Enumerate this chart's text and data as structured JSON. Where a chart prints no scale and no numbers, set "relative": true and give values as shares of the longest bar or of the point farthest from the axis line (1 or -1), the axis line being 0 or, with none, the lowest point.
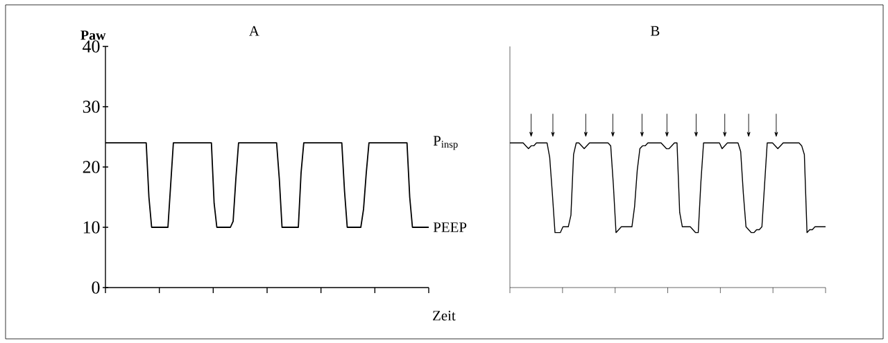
{
  "chart_data": [
    {
      "type": "line",
      "title": "A",
      "ylabel": "Paw",
      "xlabel": "Zeit",
      "color": "#000000",
      "categories": [
        null,
        null,
        null,
        null,
        null,
        null,
        null,
        null,
        null,
        null,
        null,
        null,
        null,
        null,
        null,
        null,
        null,
        null,
        null,
        null,
        null,
        null,
        null,
        null,
        null,
        null,
        null,
        null,
        null,
        null,
        null,
        null,
        null,
        null,
        null,
        null,
        null,
        null,
        null,
        null,
        null,
        null,
        null,
        null,
        null,
        null,
        null,
        null,
        null,
        null,
        null,
        null,
        null,
        null,
        null,
        null,
        null,
        null,
        null,
        null,
        null,
        null,
        null,
        null,
        null,
        null,
        null,
        null,
        null,
        null,
        null,
        null,
        null,
        null,
        null,
        null,
        null,
        null,
        null,
        null,
        null,
        null,
        null,
        null,
        null,
        null,
        null,
        null,
        null,
        null,
        null,
        null,
        null,
        null,
        null,
        null,
        null,
        null,
        null,
        null,
        null,
        null,
        null,
        null,
        null,
        null,
        null,
        null,
        null,
        null,
        null,
        null,
        null,
        null,
        null,
        null,
        null,
        null,
        null,
        null
      ],
      "values": [
        24,
        24,
        24,
        24,
        24,
        24,
        24,
        24,
        24,
        24,
        24,
        24,
        24,
        24,
        24,
        24,
        15,
        10,
        10,
        10,
        10,
        10,
        10,
        10,
        17,
        24,
        24,
        24,
        24,
        24,
        24,
        24,
        24,
        24,
        24,
        24,
        24,
        24,
        24,
        24,
        14,
        10,
        10,
        10,
        10,
        10,
        10,
        11,
        18,
        24,
        24,
        24,
        24,
        24,
        24,
        24,
        24,
        24,
        24,
        24,
        24,
        24,
        24,
        24,
        18,
        10,
        10,
        10,
        10,
        10,
        10,
        10,
        19,
        24,
        24,
        24,
        24,
        24,
        24,
        24,
        24,
        24,
        24,
        24,
        24,
        24,
        24,
        24,
        16,
        10,
        10,
        10,
        10,
        10,
        10,
        13,
        19,
        24,
        24,
        24,
        24,
        24,
        24,
        24,
        24,
        24,
        24,
        24,
        24,
        24,
        24,
        24,
        15,
        10,
        10,
        10,
        10,
        10,
        10,
        10
      ],
      "ylim": [
        0,
        40
      ],
      "yticks": [
        0,
        10,
        20,
        30,
        40
      ],
      "tick_labels": "y",
      "annotations": [
        "P$_{insp}$",
        "PEEP"
      ]
    },
    {
      "type": "line",
      "title": "B",
      "color": "#000000",
      "categories": [
        null,
        null,
        null,
        null,
        null,
        null,
        null,
        null,
        null,
        null,
        null,
        null,
        null,
        null,
        null,
        null,
        null,
        null,
        null,
        null,
        null,
        null,
        null,
        null,
        null,
        null,
        null,
        null,
        null,
        null,
        null,
        null,
        null,
        null,
        null,
        null,
        null,
        null,
        null,
        null,
        null,
        null,
        null,
        null,
        null,
        null,
        null,
        null,
        null,
        null,
        null,
        null,
        null,
        null,
        null,
        null,
        null,
        null,
        null,
        null,
        null,
        null,
        null,
        null,
        null,
        null,
        null,
        null,
        null,
        null,
        null,
        null,
        null,
        null,
        null,
        null,
        null,
        null,
        null,
        null,
        null,
        null,
        null,
        null,
        null,
        null,
        null,
        null,
        null,
        null,
        null,
        null,
        null,
        null,
        null,
        null,
        null,
        null,
        null,
        null,
        null,
        null,
        null,
        null,
        null,
        null,
        null,
        null,
        null,
        null,
        null,
        null,
        null,
        null,
        null,
        null,
        null,
        null,
        null,
        null
      ],
      "values": [
        1,
        1,
        1,
        1,
        1,
        1,
        0.98,
        0.96,
        0.98,
        0.98,
        1,
        1,
        1,
        1,
        1,
        0.9,
        0.65,
        0.38,
        0.38,
        0.38,
        0.42,
        0.42,
        0.42,
        0.5,
        0.92,
        1,
        1,
        0.98,
        0.96,
        0.98,
        1,
        1,
        1,
        1,
        1,
        1,
        1,
        1,
        0.98,
        0.71,
        0.38,
        0.4,
        0.42,
        0.42,
        0.42,
        0.42,
        0.42,
        0.56,
        0.81,
        0.96,
        0.98,
        0.98,
        1,
        1,
        1,
        1,
        1,
        1,
        0.98,
        0.96,
        0.96,
        0.98,
        1,
        1,
        0.52,
        0.42,
        0.42,
        0.42,
        0.42,
        0.4,
        0.38,
        0.38,
        0.73,
        1,
        1,
        1,
        1,
        1,
        1,
        1,
        0.96,
        0.98,
        1,
        1,
        1,
        1,
        1,
        0.94,
        0.65,
        0.42,
        0.4,
        0.38,
        0.38,
        0.4,
        0.4,
        0.42,
        0.71,
        1,
        1,
        1,
        0.98,
        0.96,
        0.98,
        1,
        1,
        1,
        1,
        1,
        1,
        1,
        0.98,
        0.92,
        0.38,
        0.4,
        0.4,
        0.42,
        0.42,
        0.42,
        0.42,
        0.42
      ],
      "relative": true
    }
  ]
}
